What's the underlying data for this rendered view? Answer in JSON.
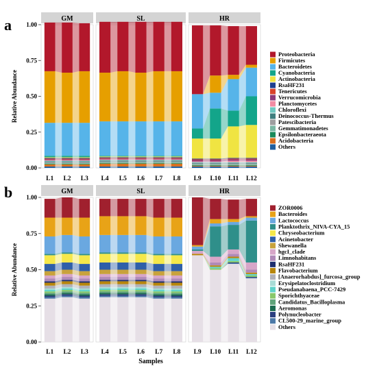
{
  "chart_data": [
    {
      "type": "bar",
      "panel_label": "a",
      "ylabel": "Relative Abundance",
      "xlabel": "",
      "ylim": [
        0,
        1
      ],
      "yticks": [
        "0.00",
        "0.25",
        "0.50",
        "0.75",
        "1.00"
      ],
      "stacked": true,
      "alluvial_links": true,
      "legend_placement": "right",
      "facets": [
        {
          "label": "GM",
          "categories": [
            "L1",
            "L2",
            "L3"
          ]
        },
        {
          "label": "SL",
          "categories": [
            "L4",
            "L5",
            "L6",
            "L7",
            "L8"
          ]
        },
        {
          "label": "HR",
          "categories": [
            "L9",
            "L10",
            "L11",
            "L12"
          ]
        }
      ],
      "categories": [
        "L1",
        "L2",
        "L3",
        "L4",
        "L5",
        "L6",
        "L7",
        "L8",
        "L9",
        "L10",
        "L11",
        "L12"
      ],
      "series": [
        {
          "name": "Others",
          "color": "#1f5fa0",
          "values": [
            0.01,
            0.01,
            0.01,
            0.01,
            0.01,
            0.01,
            0.01,
            0.01,
            0.01,
            0.01,
            0.01,
            0.01
          ]
        },
        {
          "name": "Acidobacteria",
          "color": "#d96f1e",
          "values": [
            0.015,
            0.015,
            0.015,
            0.02,
            0.02,
            0.02,
            0.02,
            0.02,
            0.005,
            0.005,
            0.005,
            0.005
          ]
        },
        {
          "name": "Epsilonbacteraeota",
          "color": "#1a8a5a",
          "values": [
            0.005,
            0.005,
            0.005,
            0.005,
            0.005,
            0.005,
            0.005,
            0.005,
            0.005,
            0.005,
            0.005,
            0.005
          ]
        },
        {
          "name": "Gemmatimonadetes",
          "color": "#7ab8a4",
          "values": [
            0.005,
            0.005,
            0.005,
            0.005,
            0.005,
            0.005,
            0.005,
            0.005,
            0.005,
            0.005,
            0.005,
            0.005
          ]
        },
        {
          "name": "Patescibacteria",
          "color": "#9e9ea0",
          "values": [
            0.005,
            0.005,
            0.005,
            0.005,
            0.005,
            0.005,
            0.005,
            0.005,
            0.005,
            0.005,
            0.005,
            0.005
          ]
        },
        {
          "name": "Deinococcus-Thermus",
          "color": "#3f7f7f",
          "values": [
            0.005,
            0.005,
            0.005,
            0.005,
            0.005,
            0.005,
            0.005,
            0.005,
            0.005,
            0.005,
            0.005,
            0.005
          ]
        },
        {
          "name": "Chloroflexi",
          "color": "#6fc9c1",
          "values": [
            0.005,
            0.005,
            0.005,
            0.005,
            0.005,
            0.005,
            0.005,
            0.005,
            0.005,
            0.005,
            0.005,
            0.005
          ]
        },
        {
          "name": "Planctomycetes",
          "color": "#f28ca3",
          "values": [
            0.005,
            0.005,
            0.005,
            0.005,
            0.005,
            0.005,
            0.005,
            0.005,
            0.005,
            0.005,
            0.01,
            0.01
          ]
        },
        {
          "name": "Verrucomicrobia",
          "color": "#8e3a7a",
          "values": [
            0.005,
            0.005,
            0.005,
            0.005,
            0.005,
            0.005,
            0.005,
            0.005,
            0.01,
            0.01,
            0.01,
            0.01
          ]
        },
        {
          "name": "Tenericutes",
          "color": "#d9432b",
          "values": [
            0.005,
            0.005,
            0.005,
            0.005,
            0.005,
            0.005,
            0.005,
            0.005,
            0.005,
            0.005,
            0.005,
            0.005
          ]
        },
        {
          "name": "RsaHF231",
          "color": "#1f3f8f",
          "values": [
            0.005,
            0.005,
            0.005,
            0.005,
            0.005,
            0.005,
            0.005,
            0.005,
            0.005,
            0.005,
            0.005,
            0.005
          ]
        },
        {
          "name": "Actinobacteria",
          "color": "#f0e442",
          "values": [
            0.005,
            0.005,
            0.005,
            0.005,
            0.005,
            0.005,
            0.005,
            0.005,
            0.14,
            0.14,
            0.22,
            0.23
          ]
        },
        {
          "name": "Cyanobacteria",
          "color": "#13a58a",
          "values": [
            0.01,
            0.01,
            0.01,
            0.005,
            0.005,
            0.005,
            0.005,
            0.005,
            0.07,
            0.21,
            0.11,
            0.2
          ]
        },
        {
          "name": "Bacteroidetes",
          "color": "#56b4e9",
          "values": [
            0.23,
            0.23,
            0.23,
            0.24,
            0.24,
            0.24,
            0.24,
            0.24,
            0.24,
            0.11,
            0.22,
            0.2
          ]
        },
        {
          "name": "Firmicutes",
          "color": "#e69f00",
          "values": [
            0.36,
            0.35,
            0.36,
            0.34,
            0.35,
            0.34,
            0.35,
            0.35,
            0.0,
            0.12,
            0.03,
            0.02
          ]
        },
        {
          "name": "Proteobacteria",
          "color": "#b2182b",
          "values": [
            0.34,
            0.35,
            0.335,
            0.355,
            0.345,
            0.355,
            0.345,
            0.345,
            0.48,
            0.35,
            0.34,
            0.27
          ]
        }
      ],
      "legend": [
        "Proteobacteria",
        "Firmicutes",
        "Bacteroidetes",
        "Cyanobacteria",
        "Actinobacteria",
        "RsaHF231",
        "Tenericutes",
        "Verrucomicrobia",
        "Planctomycetes",
        "Chloroflexi",
        "Deinococcus-Thermus",
        "Patescibacteria",
        "Gemmatimonadetes",
        "Epsilonbacteraeota",
        "Acidobacteria",
        "Others"
      ]
    },
    {
      "type": "bar",
      "panel_label": "b",
      "ylabel": "Relative Abundance",
      "xlabel": "Samples",
      "ylim": [
        0,
        1
      ],
      "yticks": [
        "0.00",
        "0.25",
        "0.50",
        "0.75",
        "1.00"
      ],
      "stacked": true,
      "alluvial_links": true,
      "legend_placement": "right",
      "facets": [
        {
          "label": "GM",
          "categories": [
            "L1",
            "L2",
            "L3"
          ]
        },
        {
          "label": "SL",
          "categories": [
            "L4",
            "L5",
            "L6",
            "L7",
            "L8"
          ]
        },
        {
          "label": "HR",
          "categories": [
            "L9",
            "L10",
            "L11",
            "L12"
          ]
        }
      ],
      "categories": [
        "L1",
        "L2",
        "L3",
        "L4",
        "L5",
        "L6",
        "L7",
        "L8",
        "L9",
        "L10",
        "L11",
        "L12"
      ],
      "series": [
        {
          "name": "Others",
          "color": "#e6dfe6",
          "values": [
            0.3,
            0.31,
            0.3,
            0.31,
            0.31,
            0.31,
            0.3,
            0.3,
            0.6,
            0.5,
            0.54,
            0.44
          ]
        },
        {
          "name": "CL500-29_marine_group",
          "color": "#4d79a8",
          "values": [
            0.01,
            0.01,
            0.01,
            0.01,
            0.01,
            0.01,
            0.01,
            0.01,
            0.0,
            0.0,
            0.005,
            0.005
          ]
        },
        {
          "name": "Polynucleobacter",
          "color": "#2b3f7f",
          "values": [
            0.01,
            0.01,
            0.01,
            0.01,
            0.01,
            0.01,
            0.01,
            0.01,
            0.0,
            0.0,
            0.005,
            0.005
          ]
        },
        {
          "name": "Aeromonas",
          "color": "#1b6b4f",
          "values": [
            0.01,
            0.01,
            0.01,
            0.01,
            0.01,
            0.01,
            0.01,
            0.01,
            0.0,
            0.0,
            0.0,
            0.0
          ]
        },
        {
          "name": "Candidatus_Bacilloplasma",
          "color": "#5fa37a",
          "values": [
            0.01,
            0.01,
            0.01,
            0.01,
            0.01,
            0.01,
            0.01,
            0.01,
            0.0,
            0.0,
            0.0,
            0.0
          ]
        },
        {
          "name": "Sporichthyaceae",
          "color": "#88c86a",
          "values": [
            0.01,
            0.01,
            0.01,
            0.01,
            0.01,
            0.01,
            0.01,
            0.01,
            0.0,
            0.01,
            0.01,
            0.01
          ]
        },
        {
          "name": "Pseudanabaena_PCC-7429",
          "color": "#5fd3c9",
          "values": [
            0.01,
            0.01,
            0.01,
            0.01,
            0.01,
            0.01,
            0.01,
            0.01,
            0.0,
            0.01,
            0.02,
            0.01
          ]
        },
        {
          "name": "Erysipelatoclostridium",
          "color": "#a8dcd6",
          "values": [
            0.01,
            0.01,
            0.01,
            0.01,
            0.01,
            0.01,
            0.01,
            0.01,
            0.0,
            0.0,
            0.0,
            0.0
          ]
        },
        {
          "name": "[Anaerorhabdus]_furcosa_group",
          "color": "#b0b0b8",
          "values": [
            0.02,
            0.02,
            0.02,
            0.02,
            0.02,
            0.02,
            0.02,
            0.02,
            0.0,
            0.0,
            0.0,
            0.0
          ]
        },
        {
          "name": "Flavobacterium",
          "color": "#b8860b",
          "values": [
            0.02,
            0.02,
            0.02,
            0.02,
            0.02,
            0.02,
            0.02,
            0.02,
            0.01,
            0.01,
            0.01,
            0.01
          ]
        },
        {
          "name": "RsaHF231",
          "color": "#1f2f6f",
          "values": [
            0.01,
            0.01,
            0.01,
            0.01,
            0.01,
            0.01,
            0.01,
            0.01,
            0.0,
            0.0,
            0.0,
            0.0
          ]
        },
        {
          "name": "Limnohabitans",
          "color": "#b08ab8",
          "values": [
            0.02,
            0.02,
            0.02,
            0.02,
            0.02,
            0.02,
            0.02,
            0.02,
            0.0,
            0.02,
            0.02,
            0.02
          ]
        },
        {
          "name": "hgcI_clade",
          "color": "#d7a6c8",
          "values": [
            0.02,
            0.02,
            0.02,
            0.02,
            0.02,
            0.02,
            0.02,
            0.02,
            0.02,
            0.04,
            0.03,
            0.05
          ]
        },
        {
          "name": "Shewanella",
          "color": "#c8a23c",
          "values": [
            0.03,
            0.03,
            0.03,
            0.03,
            0.03,
            0.03,
            0.03,
            0.03,
            0.0,
            0.0,
            0.0,
            0.0
          ]
        },
        {
          "name": "Acinetobacter",
          "color": "#2f5fa8",
          "values": [
            0.05,
            0.05,
            0.05,
            0.05,
            0.05,
            0.05,
            0.05,
            0.05,
            0.0,
            0.0,
            0.0,
            0.0
          ]
        },
        {
          "name": "Chryseobacterium",
          "color": "#f5e84a",
          "values": [
            0.06,
            0.06,
            0.06,
            0.06,
            0.06,
            0.06,
            0.06,
            0.06,
            0.0,
            0.0,
            0.0,
            0.0
          ]
        },
        {
          "name": "Planktothrix_NIVA-CYA_15",
          "color": "#2f8f8a",
          "values": [
            0.01,
            0.01,
            0.01,
            0.01,
            0.01,
            0.01,
            0.01,
            0.01,
            0.01,
            0.21,
            0.17,
            0.29
          ]
        },
        {
          "name": "Lactococcus",
          "color": "#6aa8e0",
          "values": [
            0.12,
            0.12,
            0.12,
            0.12,
            0.12,
            0.12,
            0.12,
            0.12,
            0.02,
            0.02,
            0.02,
            0.02
          ]
        },
        {
          "name": "Bacteroides",
          "color": "#e8a317",
          "values": [
            0.13,
            0.12,
            0.13,
            0.13,
            0.13,
            0.13,
            0.13,
            0.13,
            0.01,
            0.03,
            0.02,
            0.01
          ]
        },
        {
          "name": "ZOR0006",
          "color": "#a0202e",
          "values": [
            0.13,
            0.14,
            0.13,
            0.12,
            0.12,
            0.12,
            0.13,
            0.13,
            0.33,
            0.14,
            0.135,
            0.12
          ]
        }
      ],
      "legend": [
        "ZOR0006",
        "Bacteroides",
        "Lactococcus",
        "Planktothrix_NIVA-CYA_15",
        "Chryseobacterium",
        "Acinetobacter",
        "Shewanella",
        "hgcI_clade",
        "Limnohabitans",
        "RsaHF231",
        "Flavobacterium",
        "[Anaerorhabdus]_furcosa_group",
        "Erysipelatoclostridium",
        "Pseudanabaena_PCC-7429",
        "Sporichthyaceae",
        "Candidatus_Bacilloplasma",
        "Aeromonas",
        "Polynucleobacter",
        "CL500-29_marine_group",
        "Others"
      ]
    }
  ]
}
